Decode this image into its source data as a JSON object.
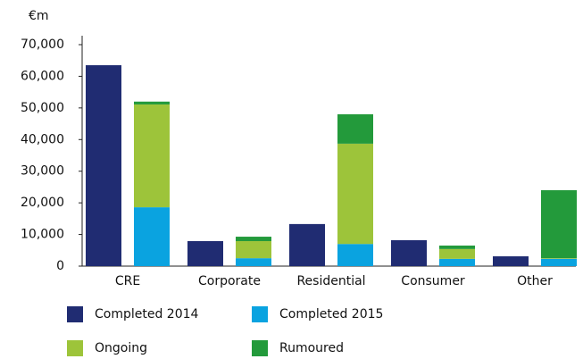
{
  "chart_data": {
    "type": "bar",
    "stacked": true,
    "y_label": "€m",
    "categories": [
      "CRE",
      "Corporate",
      "Residential",
      "Consumer",
      "Other"
    ],
    "series": [
      {
        "name": "Completed 2014",
        "color": "#202c72",
        "stack": 0,
        "values": [
          63500,
          7900,
          13300,
          8200,
          3100
        ]
      },
      {
        "name": "Completed 2015",
        "color": "#0aa3e0",
        "stack": 1,
        "values": [
          18600,
          2500,
          7000,
          2300,
          2300
        ]
      },
      {
        "name": "Ongoing",
        "color": "#9dc43a",
        "stack": 1,
        "values": [
          32500,
          5400,
          31700,
          3100,
          200
        ]
      },
      {
        "name": "Rumoured",
        "color": "#239a3b",
        "stack": 1,
        "values": [
          900,
          1400,
          9300,
          1100,
          21500
        ]
      }
    ],
    "ylim": [
      0,
      70000
    ],
    "yticks": [
      0,
      {
        "value": 10000,
        "label": "10,000"
      },
      {
        "value": 20000,
        "label": "20,000"
      },
      {
        "value": 30000,
        "label": "30,000"
      },
      {
        "value": 40000,
        "label": "40,000"
      },
      {
        "value": 50000,
        "label": "50,000"
      },
      {
        "value": 60000,
        "label": "60,000"
      },
      {
        "value": 70000,
        "label": "70,000"
      }
    ],
    "grid": false
  }
}
